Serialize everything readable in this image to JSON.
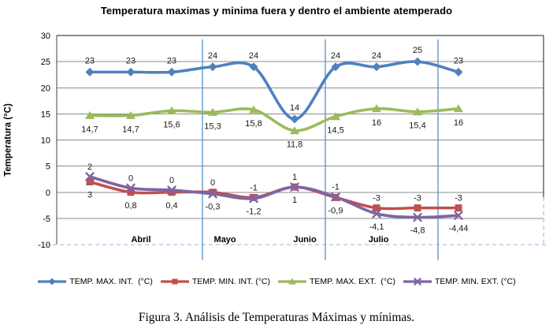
{
  "title": "Temperatura maximas y minima fuera y dentro el ambiente atemperado",
  "caption": "Figura 3. Análisis de Temperaturas Máximas y mínimas.",
  "y_axis": {
    "title": "Temperatura (°C)",
    "tick_labels": [
      "30",
      "25",
      "20",
      "15",
      "10",
      "5",
      "0",
      "-5",
      "-10"
    ],
    "max": 30,
    "min": -10,
    "tick_step": 5
  },
  "months": [
    {
      "label": "Abril",
      "center_index": 1.25
    },
    {
      "label": "Mayo",
      "center_index": 3.3
    },
    {
      "label": "Junio",
      "center_index": 5.25
    },
    {
      "label": "Julio",
      "center_index": 7.05
    }
  ],
  "separators_index": [
    2.75,
    5.75,
    8.5
  ],
  "colors": {
    "grid": "#8c8c8c",
    "plot_border": "#1a1a1a",
    "axis_line": "#404040",
    "separator": "#6296D2",
    "bottom_border": "#b9cde9",
    "label_text": "#1a1a1a"
  },
  "chart_data": {
    "type": "line",
    "title": "Temperatura maximas y minima fuera y dentro el ambiente atemperado",
    "ylabel": "Temperatura (°C)",
    "ylim": [
      -10,
      30
    ],
    "grid": true,
    "legend_position": "bottom",
    "x_groups": [
      {
        "month": "Abril",
        "points": 3
      },
      {
        "month": "Mayo",
        "points": 2
      },
      {
        "month": "Junio",
        "points": 1
      },
      {
        "month": "Julio",
        "points": 3
      },
      {
        "month": "",
        "points": 1
      }
    ],
    "series": [
      {
        "id": "temp-max-int",
        "name": "TEMP. MAX. INT.  (°C)",
        "color": "#4F81BD",
        "marker": "diamond",
        "label_side": "above",
        "values": [
          23,
          23,
          23,
          24,
          24,
          14,
          24,
          24,
          25,
          23
        ],
        "labels": [
          "23",
          "23",
          "23",
          "24",
          "24",
          "14",
          "24",
          "24",
          "25",
          "23"
        ]
      },
      {
        "id": "temp-min-int",
        "name": "TEMP. MIN. INT. (°C)",
        "color": "#C0504D",
        "marker": "square",
        "label_side": "above",
        "pair": 3,
        "values": [
          2,
          0,
          0,
          0,
          -1,
          1,
          -1,
          -3,
          -3,
          -3
        ],
        "labels": [
          "2",
          "0",
          "0",
          "0",
          "-1",
          "1",
          "-1",
          "-3",
          "-3",
          "-3"
        ]
      },
      {
        "id": "temp-max-ext",
        "name": "TEMP. MAX. EXT.  (°C)",
        "color": "#9BBB59",
        "marker": "triangle",
        "label_side": "below",
        "values": [
          14.7,
          14.7,
          15.6,
          15.3,
          15.8,
          11.8,
          14.5,
          16,
          15.4,
          16
        ],
        "labels": [
          "14,7",
          "14,7",
          "15,6",
          "15,3",
          "15,8",
          "11,8",
          "14,5",
          "16",
          "15,4",
          "16"
        ]
      },
      {
        "id": "temp-min-ext",
        "name": "TEMP. MIN. EXT. (°C)",
        "color": "#8064A2",
        "marker": "x",
        "label_side": "below",
        "pair": 1,
        "values": [
          3,
          0.8,
          0.4,
          -0.3,
          -1.2,
          1,
          -0.9,
          -4.1,
          -4.8,
          -4.44
        ],
        "labels": [
          "3",
          "0,8",
          "0,4",
          "-0,3",
          "-1,2",
          "1",
          "-0,9",
          "-4,1",
          "-4,8",
          "-4,44"
        ]
      }
    ]
  }
}
